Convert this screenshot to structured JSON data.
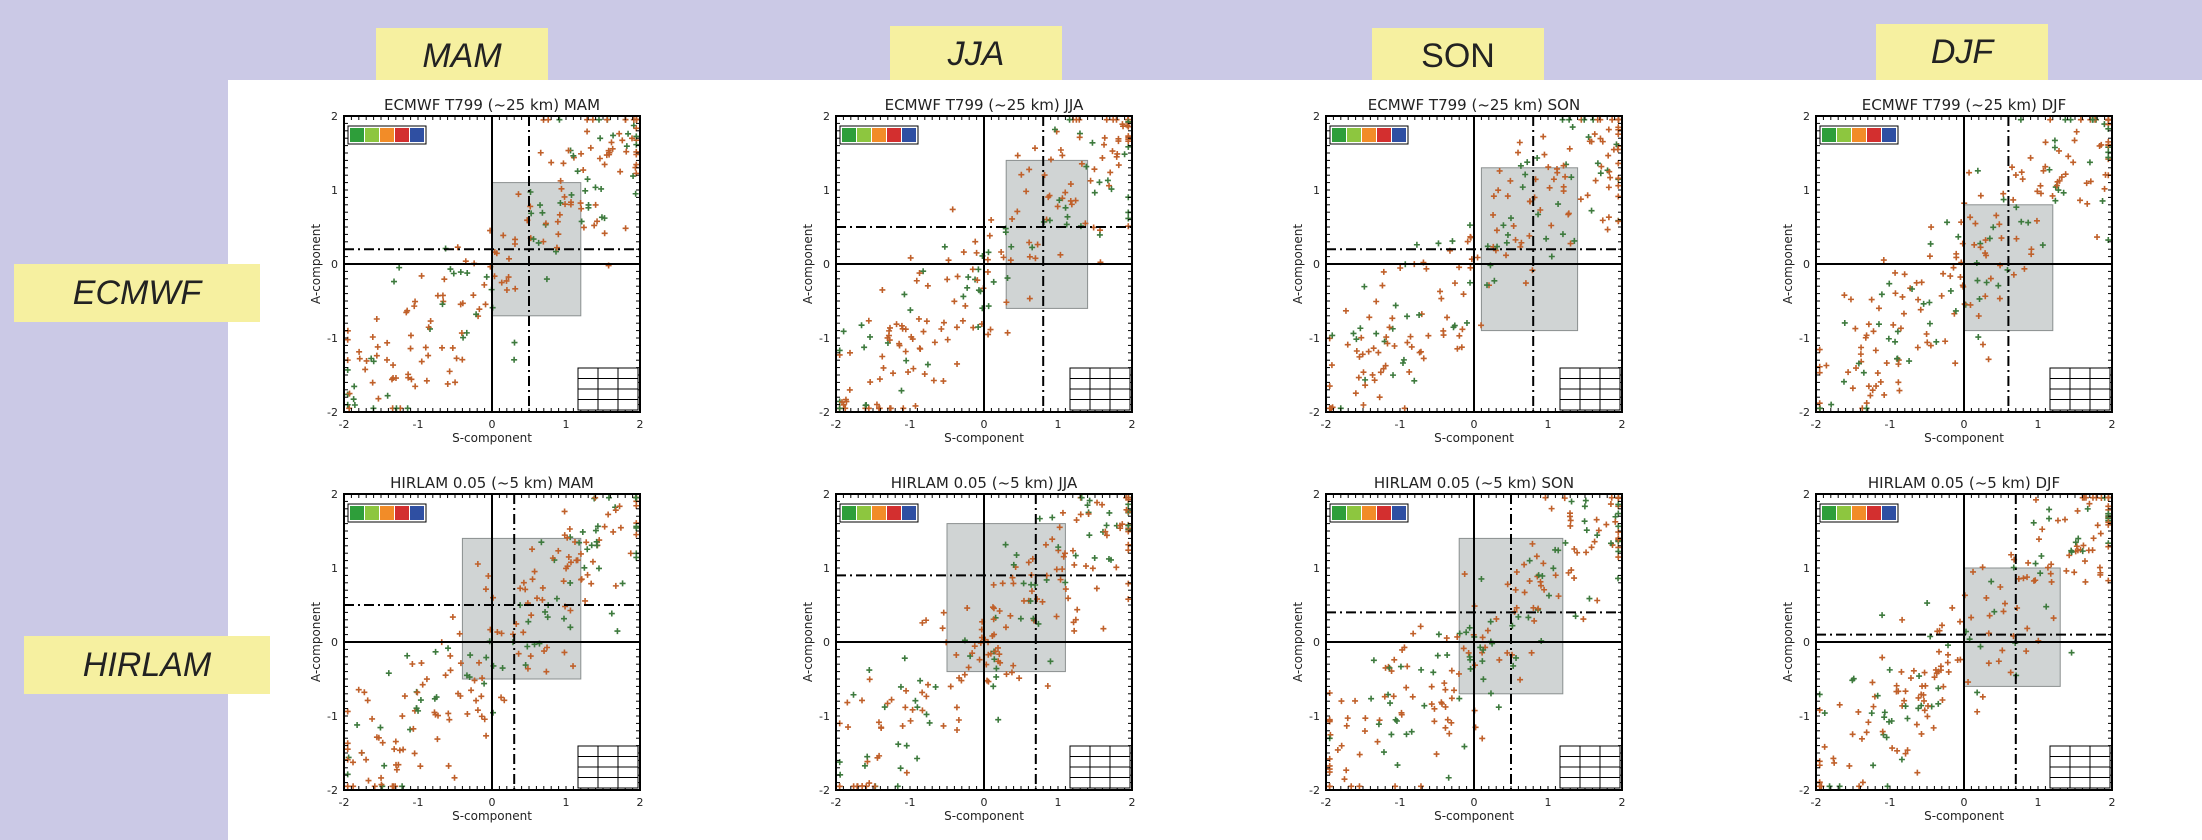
{
  "seasons": [
    {
      "label": "MAM",
      "italic": true
    },
    {
      "label": "JJA",
      "italic": true
    },
    {
      "label": "SON",
      "italic": false
    },
    {
      "label": "DJF",
      "italic": true
    }
  ],
  "models": [
    {
      "label": "ECMWF"
    },
    {
      "label": "HIRLAM"
    }
  ],
  "colors": {
    "background": "#cbc9e6",
    "label_bg": "#f6f0a0",
    "box_fill": "#c8cccc",
    "orange_points": "#c0602a",
    "green_points": "#3d7a3d",
    "legend_swatches": [
      "#2e9e3a",
      "#8dc63f",
      "#f28c28",
      "#d32f2f",
      "#2f4fa2"
    ]
  },
  "chart_data": [
    {
      "type": "scatter",
      "title": "ECMWF T799 (~25 km)   MAM",
      "xlabel": "S-component",
      "ylabel": "A-component",
      "xlim": [
        -2,
        2
      ],
      "ylim": [
        -2,
        2
      ],
      "xticks": [
        "-2",
        "-1",
        "0",
        "1",
        "2"
      ],
      "yticks": [
        "-2",
        "-1",
        "0",
        "1",
        "2"
      ],
      "ref_x": 0.5,
      "ref_y": 0.2,
      "box": {
        "x0": 0.0,
        "x1": 1.2,
        "y0": -0.7,
        "y1": 1.1
      }
    },
    {
      "type": "scatter",
      "title": "ECMWF T799 (~25 km)   JJA",
      "xlabel": "S-component",
      "ylabel": "A-component",
      "xlim": [
        -2,
        2
      ],
      "ylim": [
        -2,
        2
      ],
      "xticks": [
        "-2",
        "-1",
        "0",
        "1",
        "2"
      ],
      "yticks": [
        "-2",
        "-1",
        "0",
        "1",
        "2"
      ],
      "ref_x": 0.8,
      "ref_y": 0.5,
      "box": {
        "x0": 0.3,
        "x1": 1.4,
        "y0": -0.6,
        "y1": 1.4
      }
    },
    {
      "type": "scatter",
      "title": "ECMWF T799 (~25 km)   SON",
      "xlabel": "S-component",
      "ylabel": "A-component",
      "xlim": [
        -2,
        2
      ],
      "ylim": [
        -2,
        2
      ],
      "xticks": [
        "-2",
        "-1",
        "0",
        "1",
        "2"
      ],
      "yticks": [
        "-2",
        "-1",
        "0",
        "1",
        "2"
      ],
      "ref_x": 0.8,
      "ref_y": 0.2,
      "box": {
        "x0": 0.1,
        "x1": 1.4,
        "y0": -0.9,
        "y1": 1.3
      }
    },
    {
      "type": "scatter",
      "title": "ECMWF T799 (~25 km)   DJF",
      "xlabel": "S-component",
      "ylabel": "A-component",
      "xlim": [
        -2,
        2
      ],
      "ylim": [
        -2,
        2
      ],
      "xticks": [
        "-2",
        "-1",
        "0",
        "1",
        "2"
      ],
      "yticks": [
        "-2",
        "-1",
        "0",
        "1",
        "2"
      ],
      "ref_x": 0.6,
      "ref_y": 0.0,
      "box": {
        "x0": 0.0,
        "x1": 1.2,
        "y0": -0.9,
        "y1": 0.8
      }
    },
    {
      "type": "scatter",
      "title": "HIRLAM 0.05 (~5 km)   MAM",
      "xlabel": "S-component",
      "ylabel": "A-component",
      "xlim": [
        -2,
        2
      ],
      "ylim": [
        -2,
        2
      ],
      "xticks": [
        "-2",
        "-1",
        "0",
        "1",
        "2"
      ],
      "yticks": [
        "-2",
        "-1",
        "0",
        "1",
        "2"
      ],
      "ref_x": 0.3,
      "ref_y": 0.5,
      "box": {
        "x0": -0.4,
        "x1": 1.2,
        "y0": -0.5,
        "y1": 1.4
      }
    },
    {
      "type": "scatter",
      "title": "HIRLAM 0.05 (~5 km)   JJA",
      "xlabel": "S-component",
      "ylabel": "A-component",
      "xlim": [
        -2,
        2
      ],
      "ylim": [
        -2,
        2
      ],
      "xticks": [
        "-2",
        "-1",
        "0",
        "1",
        "2"
      ],
      "yticks": [
        "-2",
        "-1",
        "0",
        "1",
        "2"
      ],
      "ref_x": 0.7,
      "ref_y": 0.9,
      "box": {
        "x0": -0.5,
        "x1": 1.1,
        "y0": -0.4,
        "y1": 1.6
      }
    },
    {
      "type": "scatter",
      "title": "HIRLAM 0.05 (~5 km)   SON",
      "xlabel": "S-component",
      "ylabel": "A-component",
      "xlim": [
        -2,
        2
      ],
      "ylim": [
        -2,
        2
      ],
      "xticks": [
        "-2",
        "-1",
        "0",
        "1",
        "2"
      ],
      "yticks": [
        "-2",
        "-1",
        "0",
        "1",
        "2"
      ],
      "ref_x": 0.5,
      "ref_y": 0.4,
      "box": {
        "x0": -0.2,
        "x1": 1.2,
        "y0": -0.7,
        "y1": 1.4
      }
    },
    {
      "type": "scatter",
      "title": "HIRLAM 0.05 (~5 km)   DJF",
      "xlabel": "S-component",
      "ylabel": "A-component",
      "xlim": [
        -2,
        2
      ],
      "ylim": [
        -2,
        2
      ],
      "xticks": [
        "-2",
        "-1",
        "0",
        "1",
        "2"
      ],
      "yticks": [
        "-2",
        "-1",
        "0",
        "1",
        "2"
      ],
      "ref_x": 0.7,
      "ref_y": 0.1,
      "box": {
        "x0": 0.0,
        "x1": 1.3,
        "y0": -0.6,
        "y1": 1.0
      }
    }
  ]
}
